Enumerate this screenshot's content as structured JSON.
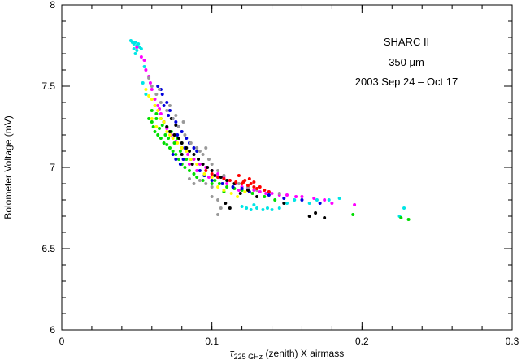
{
  "chart_data": {
    "type": "scatter",
    "title": "",
    "annotations": [
      "SHARC II",
      "350 μm",
      "2003 Sep 24 – Oct 17"
    ],
    "xlabel": {
      "prefix": "τ",
      "subscript": "225 GHz",
      "suffix": " (zenith) X airmass"
    },
    "ylabel": "Bolometer Voltage (mV)",
    "xlim": [
      0,
      0.3
    ],
    "ylim": [
      6,
      8
    ],
    "xticks": [
      {
        "value": 0,
        "label": "0"
      },
      {
        "value": 0.1,
        "label": "0.1"
      },
      {
        "value": 0.2,
        "label": "0.2"
      },
      {
        "value": 0.3,
        "label": "0.3"
      }
    ],
    "yticks": [
      {
        "value": 6,
        "label": "6"
      },
      {
        "value": 6.5,
        "label": "6.5"
      },
      {
        "value": 7,
        "label": "7"
      },
      {
        "value": 7.5,
        "label": "7.5"
      },
      {
        "value": 8,
        "label": "8"
      }
    ],
    "x_minor_step": 0.02,
    "y_minor_step": 0.1,
    "grid": false,
    "legend": "none",
    "series": [
      {
        "color": "#00e5e5",
        "points": [
          [
            0.046,
            7.78
          ],
          [
            0.047,
            7.77
          ],
          [
            0.048,
            7.76
          ],
          [
            0.049,
            7.77
          ],
          [
            0.05,
            7.75
          ],
          [
            0.051,
            7.76
          ],
          [
            0.052,
            7.74
          ],
          [
            0.048,
            7.73
          ],
          [
            0.05,
            7.72
          ],
          [
            0.053,
            7.73
          ],
          [
            0.049,
            7.7
          ],
          [
            0.055,
            7.62
          ],
          [
            0.054,
            7.52
          ],
          [
            0.056,
            7.45
          ],
          [
            0.12,
            6.76
          ],
          [
            0.123,
            6.75
          ],
          [
            0.126,
            6.74
          ],
          [
            0.13,
            6.75
          ],
          [
            0.134,
            6.74
          ],
          [
            0.137,
            6.75
          ],
          [
            0.14,
            6.74
          ],
          [
            0.128,
            6.77
          ],
          [
            0.145,
            6.75
          ],
          [
            0.15,
            6.78
          ],
          [
            0.155,
            6.8
          ],
          [
            0.165,
            6.78
          ],
          [
            0.17,
            6.8
          ],
          [
            0.178,
            6.8
          ],
          [
            0.185,
            6.81
          ],
          [
            0.228,
            6.75
          ],
          [
            0.225,
            6.7
          ]
        ]
      },
      {
        "color": "#ff00ff",
        "points": [
          [
            0.05,
            7.74
          ],
          [
            0.053,
            7.68
          ],
          [
            0.055,
            7.66
          ],
          [
            0.056,
            7.6
          ],
          [
            0.058,
            7.56
          ],
          [
            0.059,
            7.52
          ],
          [
            0.06,
            7.48
          ],
          [
            0.062,
            7.42
          ],
          [
            0.064,
            7.38
          ],
          [
            0.066,
            7.33
          ],
          [
            0.068,
            7.28
          ],
          [
            0.07,
            7.24
          ],
          [
            0.073,
            7.2
          ],
          [
            0.076,
            7.16
          ],
          [
            0.08,
            7.12
          ],
          [
            0.084,
            7.08
          ],
          [
            0.088,
            7.05
          ],
          [
            0.092,
            7.02
          ],
          [
            0.096,
            7
          ],
          [
            0.1,
            6.98
          ],
          [
            0.104,
            6.96
          ],
          [
            0.108,
            6.94
          ],
          [
            0.112,
            6.92
          ],
          [
            0.116,
            6.9
          ],
          [
            0.12,
            6.88
          ],
          [
            0.124,
            6.87
          ],
          [
            0.128,
            6.86
          ],
          [
            0.132,
            6.85
          ],
          [
            0.136,
            6.84
          ],
          [
            0.14,
            6.84
          ],
          [
            0.145,
            6.83
          ],
          [
            0.15,
            6.83
          ],
          [
            0.156,
            6.82
          ],
          [
            0.16,
            6.82
          ],
          [
            0.168,
            6.81
          ],
          [
            0.175,
            6.8
          ],
          [
            0.18,
            6.78
          ],
          [
            0.195,
            6.77
          ],
          [
            0.098,
            6.94
          ],
          [
            0.11,
            6.9
          ],
          [
            0.118,
            6.86
          ],
          [
            0.085,
            7.02
          ],
          [
            0.09,
            6.98
          ],
          [
            0.065,
            7.36
          ]
        ]
      },
      {
        "color": "#00dd00",
        "points": [
          [
            0.058,
            7.3
          ],
          [
            0.06,
            7.28
          ],
          [
            0.061,
            7.25
          ],
          [
            0.062,
            7.22
          ],
          [
            0.064,
            7.2
          ],
          [
            0.063,
            7.3
          ],
          [
            0.066,
            7.18
          ],
          [
            0.068,
            7.15
          ],
          [
            0.07,
            7.14
          ],
          [
            0.065,
            7.24
          ],
          [
            0.067,
            7.26
          ],
          [
            0.069,
            7.2
          ],
          [
            0.071,
            7.18
          ],
          [
            0.072,
            7.12
          ],
          [
            0.074,
            7.1
          ],
          [
            0.076,
            7.08
          ],
          [
            0.078,
            7.05
          ],
          [
            0.08,
            7.02
          ],
          [
            0.075,
            7.15
          ],
          [
            0.073,
            7.22
          ],
          [
            0.077,
            7.18
          ],
          [
            0.082,
            7
          ],
          [
            0.085,
            6.98
          ],
          [
            0.088,
            6.96
          ],
          [
            0.06,
            7.35
          ],
          [
            0.062,
            7.38
          ],
          [
            0.063,
            7.33
          ],
          [
            0.09,
            6.94
          ],
          [
            0.094,
            6.92
          ],
          [
            0.1,
            6.9
          ],
          [
            0.105,
            6.9
          ],
          [
            0.11,
            6.88
          ],
          [
            0.115,
            6.87
          ],
          [
            0.12,
            6.86
          ],
          [
            0.127,
            6.84
          ],
          [
            0.135,
            6.82
          ],
          [
            0.142,
            6.8
          ],
          [
            0.095,
            6.95
          ],
          [
            0.102,
            6.92
          ],
          [
            0.108,
            6.85
          ],
          [
            0.07,
            7.25
          ],
          [
            0.066,
            7.3
          ],
          [
            0.079,
            7.1
          ],
          [
            0.083,
            7.05
          ],
          [
            0.194,
            6.71
          ],
          [
            0.226,
            6.69
          ],
          [
            0.231,
            6.68
          ]
        ]
      },
      {
        "color": "#0000dd",
        "points": [
          [
            0.064,
            7.5
          ],
          [
            0.066,
            7.48
          ],
          [
            0.067,
            7.45
          ],
          [
            0.07,
            7.4
          ],
          [
            0.072,
            7.35
          ],
          [
            0.074,
            7.3
          ],
          [
            0.076,
            7.28
          ],
          [
            0.078,
            7.25
          ],
          [
            0.08,
            7.22
          ],
          [
            0.083,
            7.18
          ],
          [
            0.085,
            7.15
          ],
          [
            0.088,
            7.12
          ],
          [
            0.09,
            7.1
          ],
          [
            0.068,
            7.38
          ],
          [
            0.071,
            7.32
          ],
          [
            0.077,
            7.2
          ],
          [
            0.082,
            7.12
          ],
          [
            0.086,
            7.05
          ],
          [
            0.079,
            7.02
          ],
          [
            0.081,
            7.05
          ],
          [
            0.074,
            7.08
          ],
          [
            0.076,
            7.05
          ],
          [
            0.092,
            6.98
          ],
          [
            0.095,
            6.95
          ],
          [
            0.1,
            6.92
          ],
          [
            0.107,
            6.9
          ],
          [
            0.114,
            6.88
          ],
          [
            0.12,
            6.87
          ],
          [
            0.125,
            6.85
          ],
          [
            0.138,
            6.83
          ],
          [
            0.148,
            6.81
          ],
          [
            0.16,
            6.8
          ],
          [
            0.172,
            6.78
          ]
        ]
      },
      {
        "color": "#000000",
        "points": [
          [
            0.068,
            7.28
          ],
          [
            0.07,
            7.25
          ],
          [
            0.072,
            7.22
          ],
          [
            0.075,
            7.2
          ],
          [
            0.078,
            7.18
          ],
          [
            0.08,
            7.15
          ],
          [
            0.083,
            7.12
          ],
          [
            0.085,
            7.1
          ],
          [
            0.088,
            7.08
          ],
          [
            0.091,
            7.05
          ],
          [
            0.094,
            7.02
          ],
          [
            0.097,
            7
          ],
          [
            0.1,
            6.98
          ],
          [
            0.102,
            6.95
          ],
          [
            0.106,
            6.94
          ],
          [
            0.11,
            6.92
          ],
          [
            0.115,
            6.9
          ],
          [
            0.073,
            7.3
          ],
          [
            0.076,
            7.26
          ],
          [
            0.08,
            7.08
          ],
          [
            0.087,
            7.02
          ],
          [
            0.119,
            6.84
          ],
          [
            0.124,
            6.86
          ],
          [
            0.13,
            6.82
          ],
          [
            0.148,
            6.78
          ],
          [
            0.165,
            6.7
          ],
          [
            0.169,
            6.72
          ],
          [
            0.175,
            6.69
          ],
          [
            0.109,
            6.78
          ],
          [
            0.112,
            6.75
          ]
        ]
      },
      {
        "color": "#999999",
        "points": [
          [
            0.058,
            7.55
          ],
          [
            0.06,
            7.5
          ],
          [
            0.063,
            7.45
          ],
          [
            0.066,
            7.4
          ],
          [
            0.07,
            7.35
          ],
          [
            0.074,
            7.3
          ],
          [
            0.078,
            7.25
          ],
          [
            0.082,
            7.2
          ],
          [
            0.086,
            7.15
          ],
          [
            0.09,
            7.12
          ],
          [
            0.094,
            7.08
          ],
          [
            0.098,
            7.05
          ],
          [
            0.072,
            7.38
          ],
          [
            0.076,
            7.32
          ],
          [
            0.081,
            7.28
          ],
          [
            0.092,
            7.1
          ],
          [
            0.096,
            7.12
          ],
          [
            0.1,
            7.02
          ],
          [
            0.104,
            6.98
          ],
          [
            0.108,
            6.95
          ],
          [
            0.112,
            6.92
          ],
          [
            0.118,
            6.9
          ],
          [
            0.124,
            6.88
          ],
          [
            0.13,
            6.86
          ],
          [
            0.138,
            6.85
          ],
          [
            0.145,
            6.84
          ],
          [
            0.085,
            6.93
          ],
          [
            0.088,
            6.9
          ],
          [
            0.092,
            6.92
          ],
          [
            0.096,
            6.9
          ],
          [
            0.1,
            6.88
          ],
          [
            0.104,
            6.8
          ],
          [
            0.106,
            6.75
          ],
          [
            0.104,
            6.71
          ],
          [
            0.1,
            6.82
          ],
          [
            0.065,
            7.48
          ]
        ]
      },
      {
        "color": "#ffff00",
        "points": [
          [
            0.056,
            7.48
          ],
          [
            0.058,
            7.44
          ],
          [
            0.06,
            7.42
          ],
          [
            0.062,
            7.38
          ],
          [
            0.064,
            7.35
          ],
          [
            0.066,
            7.3
          ],
          [
            0.068,
            7.28
          ],
          [
            0.07,
            7.22
          ],
          [
            0.072,
            7.2
          ],
          [
            0.074,
            7.18
          ],
          [
            0.077,
            7.15
          ],
          [
            0.08,
            7.12
          ],
          [
            0.083,
            7.1
          ],
          [
            0.086,
            7.05
          ],
          [
            0.09,
            7.02
          ],
          [
            0.095,
            6.96
          ],
          [
            0.1,
            6.94
          ],
          [
            0.104,
            6.88
          ],
          [
            0.108,
            6.86
          ],
          [
            0.113,
            6.84
          ],
          [
            0.117,
            6.82
          ],
          [
            0.122,
            6.85
          ],
          [
            0.06,
            7.3
          ],
          [
            0.063,
            7.25
          ]
        ]
      },
      {
        "color": "#ff0000",
        "points": [
          [
            0.096,
            6.98
          ],
          [
            0.1,
            6.96
          ],
          [
            0.104,
            6.94
          ],
          [
            0.108,
            6.93
          ],
          [
            0.112,
            6.92
          ],
          [
            0.116,
            6.91
          ],
          [
            0.12,
            6.9
          ],
          [
            0.122,
            6.92
          ],
          [
            0.124,
            6.89
          ],
          [
            0.126,
            6.9
          ],
          [
            0.128,
            6.88
          ],
          [
            0.13,
            6.87
          ],
          [
            0.132,
            6.88
          ],
          [
            0.135,
            6.86
          ],
          [
            0.138,
            6.85
          ],
          [
            0.125,
            6.93
          ],
          [
            0.121,
            6.91
          ],
          [
            0.128,
            6.91
          ],
          [
            0.118,
            6.95
          ]
        ]
      }
    ]
  }
}
